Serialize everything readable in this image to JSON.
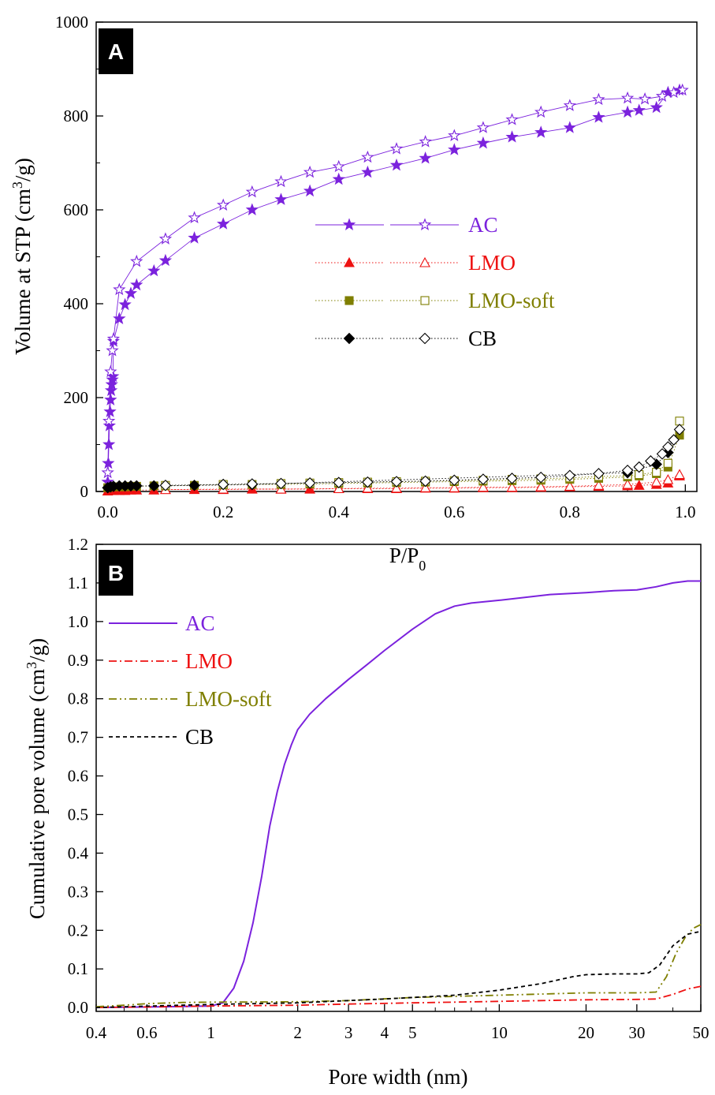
{
  "chart_data": [
    {
      "panel": "A",
      "type": "scatter",
      "xlabel": "P/P",
      "xlabel_sub": "0",
      "ylabel": "Volume at STP (cm",
      "ylabel_sup": "3",
      "ylabel_tail": "/g)",
      "xlim": [
        -0.02,
        1.02
      ],
      "ylim": [
        0,
        1000
      ],
      "xticks": [
        0.0,
        0.2,
        0.4,
        0.6,
        0.8,
        1.0
      ],
      "xtick_labels": [
        "0.0",
        "0.2",
        "0.4",
        "0.6",
        "0.8",
        "1.0"
      ],
      "yticks": [
        0,
        200,
        400,
        600,
        800,
        1000
      ],
      "ytick_labels": [
        "0",
        "200",
        "400",
        "600",
        "800",
        "1000"
      ],
      "legend_position": "center-right",
      "series": [
        {
          "name": "AC",
          "color": "#7b22dd",
          "marker": "star",
          "line": "solid",
          "adsorption": {
            "x": [
              0.0,
              0.001,
              0.002,
              0.003,
              0.004,
              0.005,
              0.006,
              0.007,
              0.008,
              0.009,
              0.01,
              0.02,
              0.03,
              0.04,
              0.05,
              0.08,
              0.1,
              0.15,
              0.2,
              0.25,
              0.3,
              0.35,
              0.4,
              0.45,
              0.5,
              0.55,
              0.6,
              0.65,
              0.7,
              0.75,
              0.8,
              0.85,
              0.9,
              0.92,
              0.95,
              0.97,
              0.99
            ],
            "y": [
              20,
              60,
              100,
              140,
              170,
              195,
              215,
              228,
              238,
              245,
              320,
              368,
              398,
              422,
              440,
              470,
              492,
              540,
              570,
              600,
              622,
              640,
              665,
              680,
              695,
              710,
              728,
              742,
              755,
              765,
              775,
              797,
              808,
              812,
              818,
              850,
              855
            ]
          },
          "desorption": {
            "x": [
              0.0,
              0.002,
              0.005,
              0.008,
              0.01,
              0.02,
              0.05,
              0.1,
              0.15,
              0.2,
              0.25,
              0.3,
              0.35,
              0.4,
              0.45,
              0.5,
              0.55,
              0.6,
              0.65,
              0.7,
              0.75,
              0.8,
              0.85,
              0.9,
              0.93,
              0.96,
              0.98,
              0.995
            ],
            "y": [
              40,
              150,
              255,
              300,
              325,
              430,
              490,
              538,
              583,
              610,
              638,
              660,
              680,
              692,
              712,
              730,
              745,
              758,
              775,
              792,
              808,
              822,
              835,
              838,
              836,
              842,
              850,
              855
            ]
          }
        },
        {
          "name": "LMO",
          "color": "#ee1111",
          "marker": "triangle",
          "line": "dotted",
          "adsorption": {
            "x": [
              0.0,
              0.01,
              0.02,
              0.03,
              0.04,
              0.05,
              0.08,
              0.1,
              0.15,
              0.2,
              0.25,
              0.3,
              0.35,
              0.4,
              0.45,
              0.5,
              0.55,
              0.6,
              0.65,
              0.7,
              0.75,
              0.8,
              0.85,
              0.9,
              0.92,
              0.95,
              0.97,
              0.99
            ],
            "y": [
              1,
              2,
              2,
              2,
              3,
              3,
              3,
              4,
              4,
              4,
              5,
              5,
              5,
              6,
              6,
              6,
              7,
              7,
              8,
              8,
              9,
              10,
              11,
              12,
              13,
              15,
              18,
              33
            ]
          },
          "desorption": {
            "x": [
              0.1,
              0.2,
              0.3,
              0.4,
              0.45,
              0.5,
              0.55,
              0.6,
              0.65,
              0.7,
              0.75,
              0.8,
              0.85,
              0.9,
              0.95,
              0.97,
              0.99
            ],
            "y": [
              4,
              5,
              5,
              6,
              7,
              7,
              8,
              8,
              9,
              9,
              10,
              11,
              13,
              15,
              20,
              25,
              36
            ]
          }
        },
        {
          "name": "LMO-soft",
          "color": "#7f7f00",
          "marker": "square",
          "line": "dotted",
          "adsorption": {
            "x": [
              0.0,
              0.01,
              0.02,
              0.03,
              0.04,
              0.05,
              0.08,
              0.1,
              0.15,
              0.2,
              0.25,
              0.3,
              0.35,
              0.4,
              0.45,
              0.5,
              0.55,
              0.6,
              0.65,
              0.7,
              0.75,
              0.8,
              0.85,
              0.9,
              0.92,
              0.95,
              0.97,
              0.99
            ],
            "y": [
              8,
              10,
              10,
              10,
              11,
              11,
              12,
              12,
              13,
              14,
              15,
              15,
              16,
              17,
              18,
              19,
              20,
              21,
              22,
              23,
              24,
              26,
              28,
              31,
              33,
              38,
              52,
              120
            ]
          },
          "desorption": {
            "x": [
              0.1,
              0.2,
              0.3,
              0.35,
              0.4,
              0.45,
              0.5,
              0.55,
              0.6,
              0.65,
              0.7,
              0.75,
              0.8,
              0.85,
              0.9,
              0.92,
              0.95,
              0.97,
              0.99
            ],
            "y": [
              13,
              15,
              17,
              18,
              19,
              20,
              21,
              22,
              23,
              24,
              26,
              27,
              29,
              32,
              34,
              36,
              41,
              60,
              150
            ]
          }
        },
        {
          "name": "CB",
          "color": "#000000",
          "marker": "diamond",
          "line": "dotted",
          "adsorption": {
            "x": [
              0.0,
              0.005,
              0.01,
              0.02,
              0.03,
              0.04,
              0.05,
              0.08,
              0.15,
              0.25,
              0.9,
              0.95,
              0.97
            ],
            "y": [
              8,
              10,
              11,
              12,
              12,
              12,
              12,
              12,
              13,
              15,
              40,
              58,
              83
            ]
          },
          "desorption": {
            "x": [
              0.1,
              0.2,
              0.25,
              0.3,
              0.35,
              0.4,
              0.45,
              0.5,
              0.55,
              0.6,
              0.65,
              0.7,
              0.75,
              0.8,
              0.85,
              0.9,
              0.92,
              0.94,
              0.96,
              0.97,
              0.98,
              0.99
            ],
            "y": [
              13,
              15,
              16,
              17,
              18,
              19,
              20,
              21,
              22,
              24,
              26,
              28,
              30,
              34,
              38,
              45,
              52,
              65,
              80,
              95,
              110,
              132
            ]
          }
        }
      ]
    },
    {
      "panel": "B",
      "type": "line",
      "xlabel": "Pore width (nm)",
      "ylabel": "Cumulative pore volume (cm",
      "ylabel_sup": "3",
      "ylabel_tail": "/g)",
      "xscale": "log",
      "xlim": [
        0.4,
        50
      ],
      "ylim": [
        -0.01,
        1.2
      ],
      "xticks": [
        0.4,
        0.6,
        1,
        2,
        3,
        4,
        5,
        10,
        20,
        30,
        50
      ],
      "xtick_labels": [
        "0.4",
        "0.6",
        "1",
        "2",
        "3",
        "4",
        "5",
        "10",
        "20",
        "30",
        "50"
      ],
      "yticks": [
        0.0,
        0.1,
        0.2,
        0.3,
        0.4,
        0.5,
        0.6,
        0.7,
        0.8,
        0.9,
        1.0,
        1.1,
        1.2
      ],
      "ytick_labels": [
        "0.0",
        "0.1",
        "0.2",
        "0.3",
        "0.4",
        "0.5",
        "0.6",
        "0.7",
        "0.8",
        "0.9",
        "1.0",
        "1.1",
        "1.2"
      ],
      "legend_position": "top-left",
      "series": [
        {
          "name": "AC",
          "color": "#7b22dd",
          "dash": "",
          "x": [
            0.4,
            0.7,
            1.0,
            1.1,
            1.2,
            1.3,
            1.4,
            1.5,
            1.6,
            1.7,
            1.8,
            1.9,
            2.0,
            2.2,
            2.5,
            3.0,
            3.5,
            4.0,
            5.0,
            6.0,
            7.0,
            8.0,
            10,
            15,
            20,
            25,
            30,
            35,
            40,
            45,
            50
          ],
          "y": [
            0.0,
            0.002,
            0.004,
            0.012,
            0.05,
            0.12,
            0.22,
            0.34,
            0.47,
            0.56,
            0.63,
            0.68,
            0.72,
            0.76,
            0.8,
            0.85,
            0.89,
            0.925,
            0.98,
            1.02,
            1.04,
            1.048,
            1.055,
            1.07,
            1.075,
            1.08,
            1.082,
            1.09,
            1.1,
            1.105,
            1.105
          ]
        },
        {
          "name": "LMO",
          "color": "#ee1111",
          "dash": "10,4,2,4",
          "x": [
            0.4,
            0.7,
            1.0,
            2.0,
            3.0,
            5.0,
            10,
            20,
            30,
            35,
            40,
            45,
            50
          ],
          "y": [
            0.0,
            0.002,
            0.004,
            0.006,
            0.009,
            0.012,
            0.016,
            0.02,
            0.021,
            0.022,
            0.034,
            0.048,
            0.055
          ]
        },
        {
          "name": "LMO-soft",
          "color": "#7f7f00",
          "dash": "10,4,2,4,2,4",
          "x": [
            0.4,
            0.5,
            0.6,
            0.8,
            1.0,
            2.0,
            3.0,
            5.0,
            10,
            20,
            30,
            35,
            38,
            41,
            44,
            47,
            50
          ],
          "y": [
            0.002,
            0.006,
            0.01,
            0.013,
            0.014,
            0.015,
            0.018,
            0.026,
            0.032,
            0.038,
            0.038,
            0.04,
            0.08,
            0.14,
            0.18,
            0.205,
            0.215
          ]
        },
        {
          "name": "CB",
          "color": "#000000",
          "dash": "5,4",
          "x": [
            0.4,
            0.7,
            1.0,
            2.0,
            3.0,
            4.0,
            5.0,
            7.0,
            10,
            14,
            18,
            20,
            25,
            30,
            33,
            36,
            40,
            45,
            50
          ],
          "y": [
            0.0,
            0.005,
            0.008,
            0.012,
            0.018,
            0.022,
            0.026,
            0.032,
            0.045,
            0.062,
            0.08,
            0.085,
            0.087,
            0.087,
            0.09,
            0.11,
            0.16,
            0.19,
            0.197
          ]
        }
      ]
    }
  ]
}
